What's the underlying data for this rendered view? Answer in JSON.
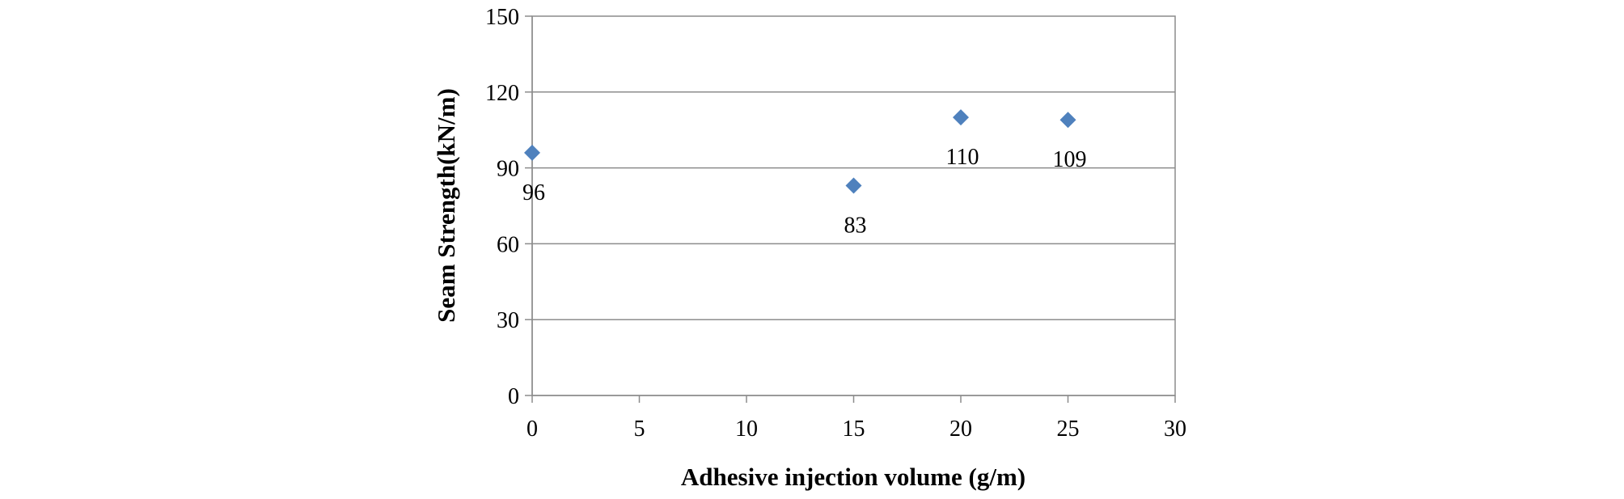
{
  "chart_data": {
    "type": "scatter",
    "title": "",
    "xlabel": "Adhesive injection volume (g/m)",
    "ylabel": "Seam Strength(kN/m)",
    "xlim": [
      0,
      30
    ],
    "ylim": [
      0,
      150
    ],
    "x_ticks": [
      "0",
      "5",
      "10",
      "15",
      "20",
      "25",
      "30"
    ],
    "y_ticks": [
      "0",
      "30",
      "60",
      "90",
      "120",
      "150"
    ],
    "grid": "horizontal",
    "legend": "none",
    "series": [
      {
        "color": "#4f81bd",
        "marker": "diamond",
        "points": [
          {
            "x": 0,
            "y": 96,
            "label": "96"
          },
          {
            "x": 15,
            "y": 83,
            "label": "83"
          },
          {
            "x": 20,
            "y": 110,
            "label": "110"
          },
          {
            "x": 25,
            "y": 109,
            "label": "109"
          }
        ]
      }
    ]
  }
}
